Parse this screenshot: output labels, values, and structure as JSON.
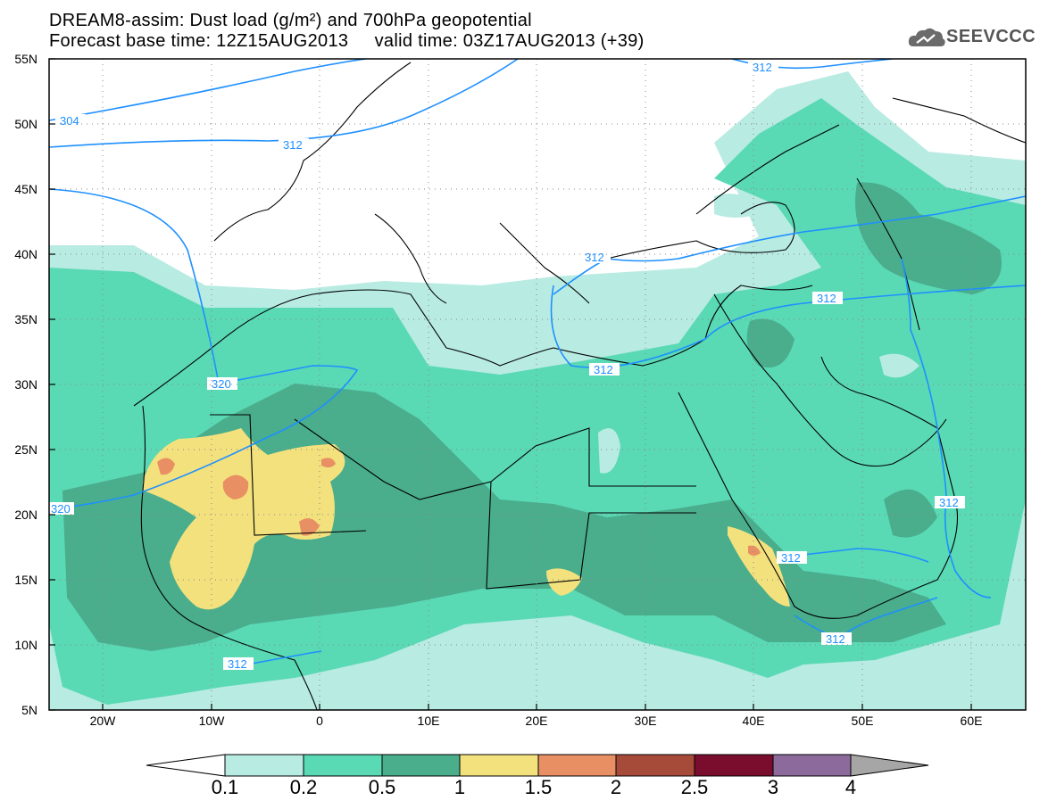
{
  "title": {
    "line1": "DREAM8-assim: Dust load (g/m²) and 700hPa geopotential",
    "line2": "Forecast base time: 12Z15AUG2013     valid time: 03Z17AUG2013 (+39)"
  },
  "logo": {
    "text": "SEEVCCC",
    "icon": "cloud-icon"
  },
  "axes": {
    "lat_labels": [
      "55N",
      "50N",
      "45N",
      "40N",
      "35N",
      "30N",
      "25N",
      "20N",
      "15N",
      "10N",
      "5N"
    ],
    "lon_labels": [
      "20W",
      "10W",
      "0",
      "10E",
      "20E",
      "30E",
      "40E",
      "50E",
      "60E"
    ],
    "lon_range": [
      -25,
      65
    ],
    "lat_range": [
      5,
      55
    ]
  },
  "contours": {
    "labels": [
      "312",
      "304",
      "312",
      "312",
      "312",
      "320",
      "312",
      "320",
      "312",
      "312",
      "312",
      "312"
    ]
  },
  "colorbar": {
    "ticks": [
      "0.1",
      "0.2",
      "0.5",
      "1",
      "1.5",
      "2",
      "2.5",
      "3",
      "4"
    ],
    "colors": [
      "#ffffff",
      "#b8ebe2",
      "#5ad9b5",
      "#4aad8c",
      "#f3e17e",
      "#e88f63",
      "#a64a3a",
      "#7a0d2e",
      "#8c6a9c",
      "#a6a6a6"
    ]
  }
}
